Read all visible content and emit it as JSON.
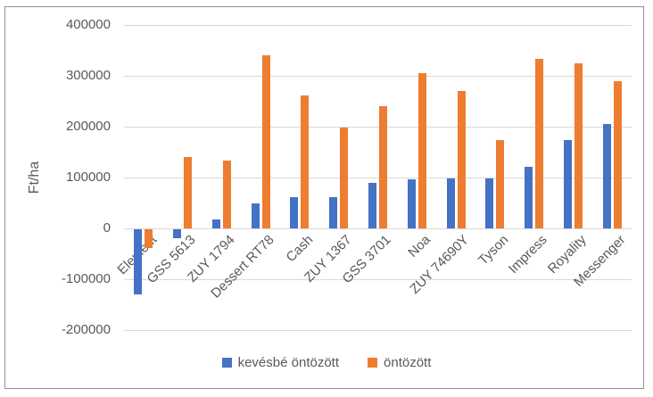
{
  "chart_data": {
    "type": "bar",
    "title": "",
    "xlabel": "",
    "ylabel": "Ft/ha",
    "categories": [
      "Element",
      "GSS 5613",
      "ZUY 1794",
      "Dessert RT78",
      "Cash",
      "ZUY 1367",
      "GSS 3701",
      "Noa",
      "ZUY 74690Y",
      "Tyson",
      "Impress",
      "Royality",
      "Messenger"
    ],
    "series": [
      {
        "name": "kevésbé öntözött",
        "color": "#4472C4",
        "values": [
          -128000,
          -18000,
          17000,
          49000,
          62000,
          61000,
          89000,
          96000,
          98000,
          98000,
          121000,
          174000,
          205000
        ]
      },
      {
        "name": "öntözött",
        "color": "#ED7D31",
        "values": [
          -37000,
          140000,
          133000,
          340000,
          262000,
          198000,
          240000,
          305000,
          270000,
          174000,
          333000,
          324000,
          290000
        ]
      }
    ],
    "ylim": [
      -200000,
      400000
    ],
    "ytick_step": 100000,
    "ytick_labels": [
      "-200000",
      "-100000",
      "0",
      "100000",
      "200000",
      "300000",
      "400000"
    ],
    "grid": true,
    "legend_position": "bottom",
    "axis_text_color": "#595959",
    "gridline_color": "#D9D9D9",
    "frame_border_color": "#919191"
  }
}
